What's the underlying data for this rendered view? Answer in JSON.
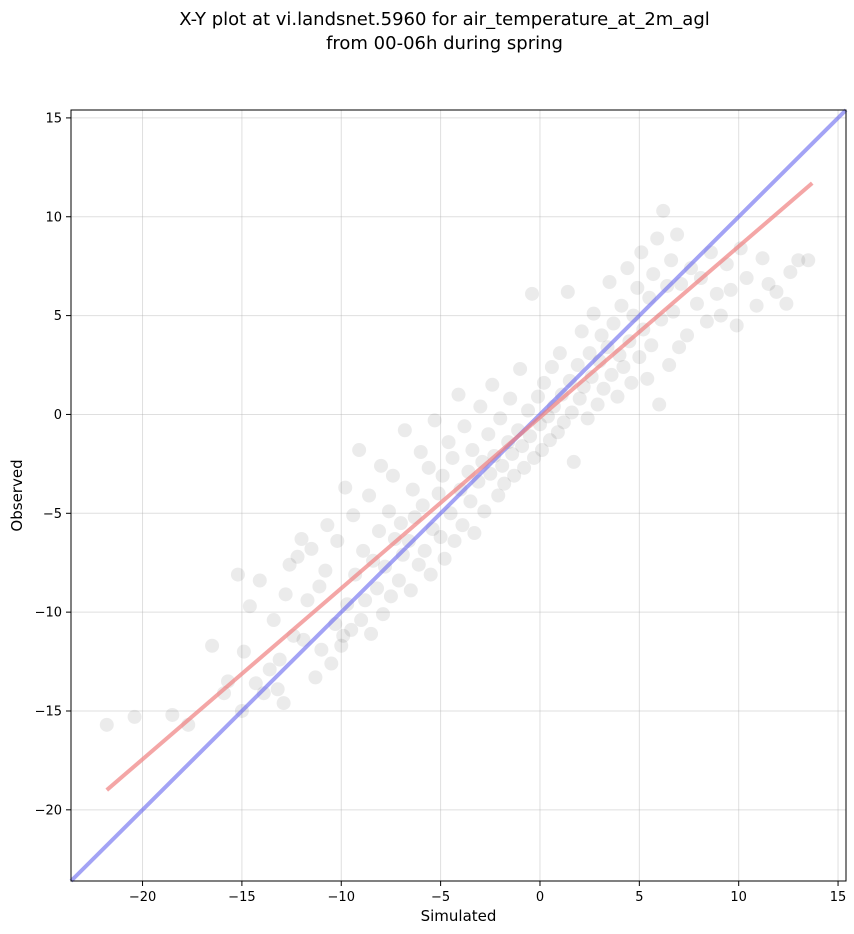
{
  "title_line1": "X-Y plot at vi.landsnet.5960 for air_temperature_at_2m_agl",
  "title_line2": "from 00-06h during spring",
  "chart_data": {
    "type": "scatter",
    "xlabel": "Simulated",
    "ylabel": "Observed",
    "xlim": [
      -23.6,
      15.4
    ],
    "ylim": [
      -23.6,
      15.4
    ],
    "xticks": [
      -20,
      -15,
      -10,
      -5,
      0,
      5,
      10,
      15
    ],
    "yticks": [
      -20,
      -15,
      -10,
      -5,
      0,
      5,
      10,
      15
    ],
    "xtick_labels": [
      "−20",
      "−15",
      "−10",
      "−5",
      "0",
      "5",
      "10",
      "15"
    ],
    "ytick_labels": [
      "−20",
      "−15",
      "−10",
      "−5",
      "0",
      "5",
      "10",
      "15"
    ],
    "grid": true,
    "point_color": "#000000",
    "point_opacity": 0.08,
    "points": [
      [
        -21.8,
        -15.7
      ],
      [
        -20.4,
        -15.3
      ],
      [
        -18.5,
        -15.2
      ],
      [
        -17.7,
        -15.7
      ],
      [
        -16.5,
        -11.7
      ],
      [
        -15.9,
        -14.1
      ],
      [
        -15.7,
        -13.5
      ],
      [
        -15.2,
        -8.1
      ],
      [
        -15.0,
        -15.0
      ],
      [
        -14.9,
        -12.0
      ],
      [
        -14.6,
        -9.7
      ],
      [
        -14.3,
        -13.6
      ],
      [
        -14.1,
        -8.4
      ],
      [
        -13.9,
        -14.1
      ],
      [
        -13.6,
        -12.9
      ],
      [
        -13.4,
        -10.4
      ],
      [
        -13.2,
        -13.9
      ],
      [
        -13.1,
        -12.4
      ],
      [
        -12.9,
        -14.6
      ],
      [
        -12.8,
        -9.1
      ],
      [
        -12.6,
        -7.6
      ],
      [
        -12.4,
        -11.2
      ],
      [
        -12.2,
        -7.2
      ],
      [
        -12.0,
        -6.3
      ],
      [
        -11.9,
        -11.4
      ],
      [
        -11.7,
        -9.4
      ],
      [
        -11.5,
        -6.8
      ],
      [
        -11.3,
        -13.3
      ],
      [
        -11.1,
        -8.7
      ],
      [
        -11.0,
        -11.9
      ],
      [
        -10.8,
        -7.9
      ],
      [
        -10.7,
        -5.6
      ],
      [
        -10.5,
        -12.6
      ],
      [
        -10.3,
        -10.6
      ],
      [
        -10.2,
        -6.4
      ],
      [
        -10.0,
        -11.7
      ],
      [
        -9.9,
        -11.2
      ],
      [
        -9.8,
        -3.7
      ],
      [
        -9.7,
        -9.6
      ],
      [
        -9.5,
        -10.9
      ],
      [
        -9.4,
        -5.1
      ],
      [
        -9.3,
        -8.1
      ],
      [
        -9.1,
        -1.8
      ],
      [
        -9.0,
        -10.4
      ],
      [
        -8.9,
        -6.9
      ],
      [
        -8.8,
        -9.4
      ],
      [
        -8.6,
        -4.1
      ],
      [
        -8.5,
        -11.1
      ],
      [
        -8.4,
        -7.4
      ],
      [
        -8.2,
        -8.8
      ],
      [
        -8.1,
        -5.9
      ],
      [
        -8.0,
        -2.6
      ],
      [
        -7.9,
        -10.1
      ],
      [
        -7.8,
        -7.7
      ],
      [
        -7.6,
        -4.9
      ],
      [
        -7.5,
        -9.2
      ],
      [
        -7.4,
        -3.1
      ],
      [
        -7.3,
        -6.3
      ],
      [
        -7.1,
        -8.4
      ],
      [
        -7.0,
        -5.5
      ],
      [
        -6.9,
        -7.1
      ],
      [
        -6.8,
        -0.8
      ],
      [
        -6.6,
        -6.4
      ],
      [
        -6.5,
        -8.9
      ],
      [
        -6.4,
        -3.8
      ],
      [
        -6.3,
        -5.2
      ],
      [
        -6.1,
        -7.6
      ],
      [
        -6.0,
        -1.9
      ],
      [
        -5.9,
        -4.6
      ],
      [
        -5.8,
        -6.9
      ],
      [
        -5.6,
        -2.7
      ],
      [
        -5.5,
        -8.1
      ],
      [
        -5.4,
        -5.8
      ],
      [
        -5.3,
        -0.3
      ],
      [
        -5.1,
        -4.0
      ],
      [
        -5.0,
        -6.2
      ],
      [
        -4.9,
        -3.1
      ],
      [
        -4.8,
        -7.3
      ],
      [
        -4.6,
        -1.4
      ],
      [
        -4.5,
        -5.0
      ],
      [
        -4.4,
        -2.2
      ],
      [
        -4.3,
        -6.4
      ],
      [
        -4.1,
        1.0
      ],
      [
        -4.0,
        -3.8
      ],
      [
        -3.9,
        -5.6
      ],
      [
        -3.8,
        -0.6
      ],
      [
        -3.6,
        -2.9
      ],
      [
        -3.5,
        -4.4
      ],
      [
        -3.4,
        -1.8
      ],
      [
        -3.3,
        -6.0
      ],
      [
        -3.1,
        -3.4
      ],
      [
        -3.0,
        0.4
      ],
      [
        -2.9,
        -2.4
      ],
      [
        -2.8,
        -4.9
      ],
      [
        -2.6,
        -1.0
      ],
      [
        -2.5,
        -3.0
      ],
      [
        -2.4,
        1.5
      ],
      [
        -2.3,
        -2.1
      ],
      [
        -2.1,
        -4.1
      ],
      [
        -2.0,
        -0.2
      ],
      [
        -1.9,
        -2.6
      ],
      [
        -1.8,
        -3.5
      ],
      [
        -1.6,
        -1.4
      ],
      [
        -1.5,
        0.8
      ],
      [
        -1.4,
        -2.0
      ],
      [
        -1.3,
        -3.1
      ],
      [
        -1.1,
        -0.8
      ],
      [
        -1.0,
        2.3
      ],
      [
        -0.9,
        -1.6
      ],
      [
        -0.8,
        -2.7
      ],
      [
        -0.6,
        0.2
      ],
      [
        -0.5,
        -1.1
      ],
      [
        -0.4,
        6.1
      ],
      [
        -0.3,
        -2.2
      ],
      [
        -0.1,
        0.9
      ],
      [
        0.0,
        -0.5
      ],
      [
        0.1,
        -1.8
      ],
      [
        0.2,
        1.6
      ],
      [
        0.4,
        -0.1
      ],
      [
        0.5,
        -1.3
      ],
      [
        0.6,
        2.4
      ],
      [
        0.7,
        0.4
      ],
      [
        0.9,
        -0.9
      ],
      [
        1.0,
        3.1
      ],
      [
        1.1,
        1.0
      ],
      [
        1.2,
        -0.4
      ],
      [
        1.4,
        6.2
      ],
      [
        1.5,
        1.7
      ],
      [
        1.6,
        0.1
      ],
      [
        1.7,
        -2.4
      ],
      [
        1.9,
        2.5
      ],
      [
        2.0,
        0.8
      ],
      [
        2.1,
        4.2
      ],
      [
        2.2,
        1.4
      ],
      [
        2.4,
        -0.2
      ],
      [
        2.5,
        3.1
      ],
      [
        2.6,
        1.9
      ],
      [
        2.7,
        5.1
      ],
      [
        2.9,
        0.5
      ],
      [
        3.0,
        2.7
      ],
      [
        3.1,
        4.0
      ],
      [
        3.2,
        1.3
      ],
      [
        3.4,
        3.4
      ],
      [
        3.5,
        6.7
      ],
      [
        3.6,
        2.0
      ],
      [
        3.7,
        4.6
      ],
      [
        3.9,
        0.9
      ],
      [
        4.0,
        3.0
      ],
      [
        4.1,
        5.5
      ],
      [
        4.2,
        2.4
      ],
      [
        4.4,
        7.4
      ],
      [
        4.5,
        3.7
      ],
      [
        4.6,
        1.6
      ],
      [
        4.7,
        5.0
      ],
      [
        4.9,
        6.4
      ],
      [
        5.0,
        2.9
      ],
      [
        5.1,
        8.2
      ],
      [
        5.2,
        4.3
      ],
      [
        5.4,
        1.8
      ],
      [
        5.5,
        5.9
      ],
      [
        5.6,
        3.5
      ],
      [
        5.7,
        7.1
      ],
      [
        5.9,
        8.9
      ],
      [
        6.0,
        0.5
      ],
      [
        6.1,
        4.8
      ],
      [
        6.2,
        10.3
      ],
      [
        6.4,
        6.5
      ],
      [
        6.5,
        2.5
      ],
      [
        6.6,
        7.8
      ],
      [
        6.7,
        5.2
      ],
      [
        6.9,
        9.1
      ],
      [
        7.0,
        3.4
      ],
      [
        7.1,
        6.6
      ],
      [
        7.4,
        4.0
      ],
      [
        7.6,
        7.4
      ],
      [
        7.9,
        5.6
      ],
      [
        8.1,
        6.9
      ],
      [
        8.4,
        4.7
      ],
      [
        8.6,
        8.2
      ],
      [
        8.9,
        6.1
      ],
      [
        9.1,
        5.0
      ],
      [
        9.4,
        7.6
      ],
      [
        9.6,
        6.3
      ],
      [
        9.9,
        4.5
      ],
      [
        10.1,
        8.4
      ],
      [
        10.4,
        6.9
      ],
      [
        10.9,
        5.5
      ],
      [
        11.2,
        7.9
      ],
      [
        11.5,
        6.6
      ],
      [
        11.9,
        6.2
      ],
      [
        12.4,
        5.6
      ],
      [
        12.6,
        7.2
      ],
      [
        13.0,
        7.8
      ],
      [
        13.5,
        7.8
      ]
    ],
    "regression_line": {
      "x": [
        -21.8,
        13.7
      ],
      "y": [
        -19.0,
        11.7
      ],
      "color": "#f08080",
      "opacity": 0.7
    },
    "identity_line": {
      "x": [
        -23.6,
        15.4
      ],
      "y": [
        -23.6,
        15.4
      ],
      "color": "#6666ee",
      "opacity": 0.6
    }
  }
}
